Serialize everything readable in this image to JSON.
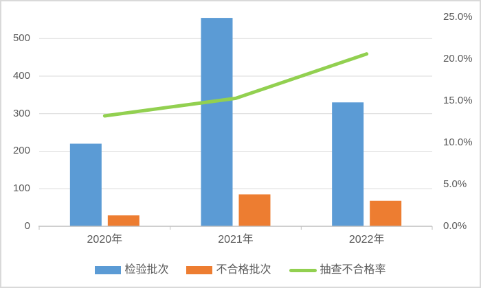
{
  "chart_data": {
    "type": "combo",
    "title": "",
    "categories": [
      "2020年",
      "2021年",
      "2022年"
    ],
    "series": [
      {
        "name": "检验批次",
        "type": "bar",
        "axis": "left",
        "color": "#5B9BD5",
        "values": [
          220,
          555,
          330
        ]
      },
      {
        "name": "不合格批次",
        "type": "bar",
        "axis": "left",
        "color": "#ED7D31",
        "values": [
          29,
          85,
          68
        ]
      },
      {
        "name": "抽查不合格率",
        "type": "line",
        "axis": "right",
        "color": "#92D050",
        "values_pct": [
          13.2,
          15.3,
          20.6
        ]
      }
    ],
    "left_axis": {
      "ticks": [
        0,
        100,
        200,
        300,
        400,
        500
      ],
      "ylim": [
        0,
        557
      ]
    },
    "right_axis": {
      "tick_labels": [
        "0.0%",
        "5.0%",
        "10.0%",
        "15.0%",
        "20.0%",
        "25.0%"
      ],
      "tick_values": [
        0,
        5,
        10,
        15,
        20,
        25
      ],
      "ylim": [
        0,
        25
      ]
    },
    "grid": true,
    "legend_position": "bottom"
  },
  "colors": {
    "bar_blue": "#5B9BD5",
    "bar_orange": "#ED7D31",
    "line_green": "#92D050",
    "gridline": "#D9D9D9",
    "axis_line": "#BFBFBF",
    "text": "#595959",
    "border": "#D9D9D9"
  }
}
